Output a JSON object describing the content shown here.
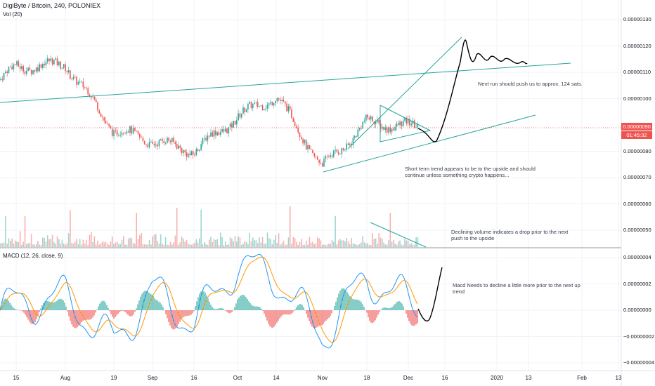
{
  "header": {
    "title": "DigiByte / Bitcoin, 240, POLONIEX",
    "volume_label": "Vol (20)",
    "macd_label": "MACD (12, 26, close, 9)"
  },
  "price_scale": {
    "ticks": [
      "0.00000130",
      "0.00000120",
      "0.00000110",
      "0.00000100",
      "0.00000080",
      "0.00000070",
      "0.00000060",
      "0.00000050"
    ],
    "tick_values": [
      130,
      120,
      110,
      100,
      80,
      70,
      60,
      50
    ],
    "last_price": "0.00000090",
    "countdown": "01:45:32"
  },
  "macd_scale": {
    "ticks": [
      "0.00000004",
      "0.00000002",
      "0.00000000",
      "−0.00000002",
      "−0.00000004"
    ],
    "tick_values": [
      4,
      2,
      0,
      -2,
      -4
    ]
  },
  "time_axis": {
    "labels": [
      "15",
      "Aug",
      "19",
      "Sep",
      "16",
      "Oct",
      "14",
      "Nov",
      "18",
      "Dec",
      "16",
      "2020",
      "13",
      "Feb",
      "13"
    ]
  },
  "annotations": {
    "next_run": "Next run should push us to approx. 124 sats.",
    "short_term_1": "Short term trend appears to be to the upside and should",
    "short_term_2": "continue unless something crypto happens...",
    "volume_1": "Declining volume indicates a drop prior to the next",
    "volume_2": "push to the upside",
    "macd_1": "Macd Needs to decline a little more prior to the next up",
    "macd_2": "trend"
  },
  "colors": {
    "up": "#26a69a",
    "down": "#ef5350",
    "trendline": "#26a69a",
    "macd_line": "#2196f3",
    "signal_line": "#ff9800",
    "projection": "#000000"
  },
  "chart_data": {
    "type": "line",
    "title": "DigiByte / Bitcoin, 240, POLONIEX",
    "x": [
      "15",
      "Aug",
      "19",
      "Sep",
      "16",
      "Oct",
      "14",
      "Nov",
      "18",
      "Dec"
    ],
    "series": [
      {
        "name": "DigiByte / Bitcoin",
        "values": [
          112,
          113,
          88,
          84,
          80,
          93,
          101,
          74,
          91,
          89
        ]
      },
      {
        "name": "MACD",
        "values": [
          0.5,
          1.0,
          -2.5,
          1.5,
          -1.0,
          3.5,
          2.5,
          -2.0,
          2.5,
          0.2
        ]
      }
    ],
    "ylim": [
      45,
      135
    ],
    "projected_high": 124
  }
}
